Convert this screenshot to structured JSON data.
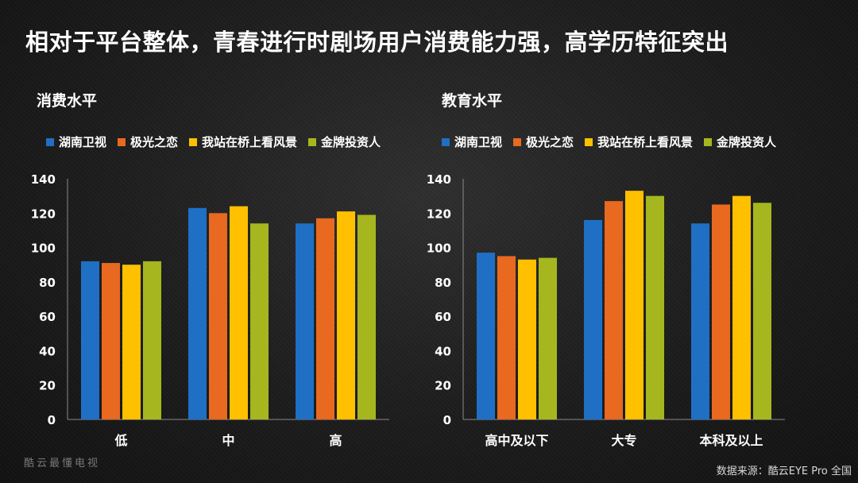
{
  "title": "相对于平台整体，青春进行时剧场用户消费能力强，高学历特征突出",
  "colors": {
    "湖南卫视": "#1f6fc5",
    "极光之恋": "#e8691f",
    "我站在桥上看风景": "#ffc000",
    "金牌投资人": "#a6b61f"
  },
  "chart_data": [
    {
      "type": "bar",
      "title": "消费水平",
      "categories": [
        "低",
        "中",
        "高"
      ],
      "series": [
        {
          "name": "湖南卫视",
          "values": [
            92,
            123,
            114
          ]
        },
        {
          "name": "极光之恋",
          "values": [
            91,
            120,
            117
          ]
        },
        {
          "name": "我站在桥上看风景",
          "values": [
            90,
            124,
            121
          ]
        },
        {
          "name": "金牌投资人",
          "values": [
            92,
            114,
            119
          ]
        }
      ],
      "ylim": [
        0,
        140
      ],
      "yticks": [
        "0",
        "20",
        "40",
        "60",
        "80",
        "100",
        "120",
        "140"
      ],
      "grid": false,
      "legend": "top"
    },
    {
      "type": "bar",
      "title": "教育水平",
      "categories": [
        "高中及以下",
        "大专",
        "本科及以上"
      ],
      "series": [
        {
          "name": "湖南卫视",
          "values": [
            97,
            116,
            114
          ]
        },
        {
          "name": "极光之恋",
          "values": [
            95,
            127,
            125
          ]
        },
        {
          "name": "我站在桥上看风景",
          "values": [
            93,
            133,
            130
          ]
        },
        {
          "name": "金牌投资人",
          "values": [
            94,
            130,
            126
          ]
        }
      ],
      "ylim": [
        0,
        140
      ],
      "yticks": [
        "0",
        "20",
        "40",
        "60",
        "80",
        "100",
        "120",
        "140"
      ],
      "grid": false,
      "legend": "top"
    }
  ],
  "watermark": "酷云最懂电视",
  "source": "数据来源：酷云EYE Pro  全国"
}
